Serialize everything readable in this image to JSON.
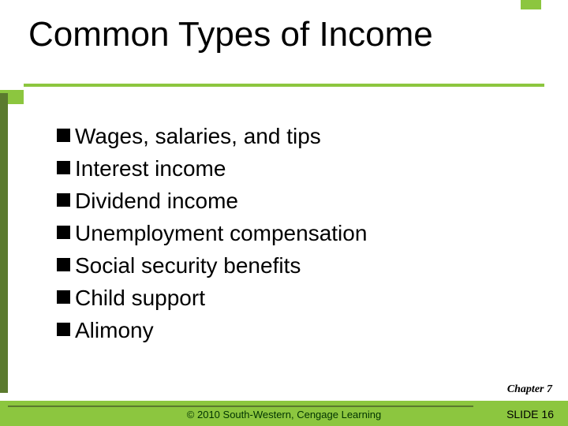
{
  "colors": {
    "accent_green": "#8cc63f",
    "dark_green": "#5b7a2e",
    "background": "#ffffff",
    "text": "#000000",
    "footer_text": "#003300"
  },
  "title": "Common Types of Income",
  "bullets": [
    "Wages, salaries, and tips",
    "Interest income",
    "Dividend income",
    "Unemployment compensation",
    "Social security benefits",
    "Child support",
    "Alimony"
  ],
  "chapter_label": "Chapter 7",
  "copyright": "© 2010 South-Western, Cengage Learning",
  "slide_label": "SLIDE 16",
  "typography": {
    "title_fontsize": 44,
    "bullet_fontsize": 28,
    "footer_fontsize": 13,
    "chapter_fontsize": 14
  }
}
